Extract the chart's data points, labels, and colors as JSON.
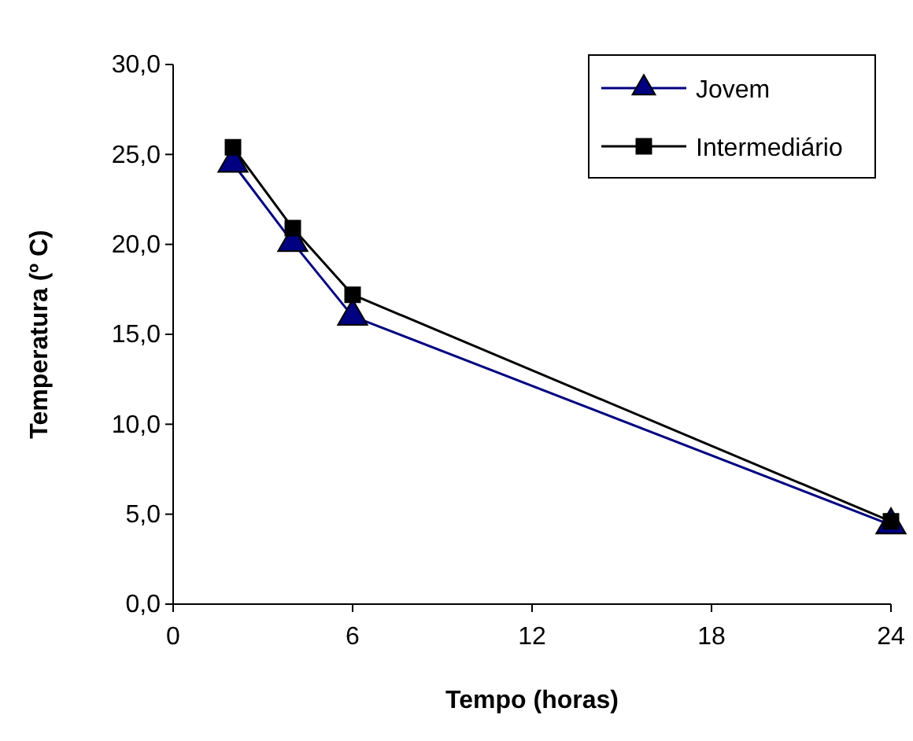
{
  "chart_data": {
    "type": "line",
    "xlabel": "Tempo (horas)",
    "ylabel": "Temperatura (º C)",
    "x": [
      2,
      4,
      6,
      24
    ],
    "series": [
      {
        "name": "Jovem",
        "color": "#000080",
        "marker": "triangle",
        "values": [
          24.5,
          20.1,
          16.0,
          4.4
        ]
      },
      {
        "name": "Intermediário",
        "color": "#000000",
        "marker": "square",
        "values": [
          25.4,
          20.9,
          17.2,
          4.6
        ]
      }
    ],
    "xlim": [
      0,
      24
    ],
    "xticks": [
      0,
      6,
      12,
      18,
      24
    ],
    "ylim": [
      0,
      30
    ],
    "yticks": [
      {
        "value": 0,
        "label": "0,0"
      },
      {
        "value": 5,
        "label": "5,0"
      },
      {
        "value": 10,
        "label": "10,0"
      },
      {
        "value": 15,
        "label": "15,0"
      },
      {
        "value": 20,
        "label": "20,0"
      },
      {
        "value": 25,
        "label": "25,0"
      },
      {
        "value": 30,
        "label": "30,0"
      }
    ],
    "grid": false,
    "legend": "top right",
    "line_style": "solid"
  }
}
